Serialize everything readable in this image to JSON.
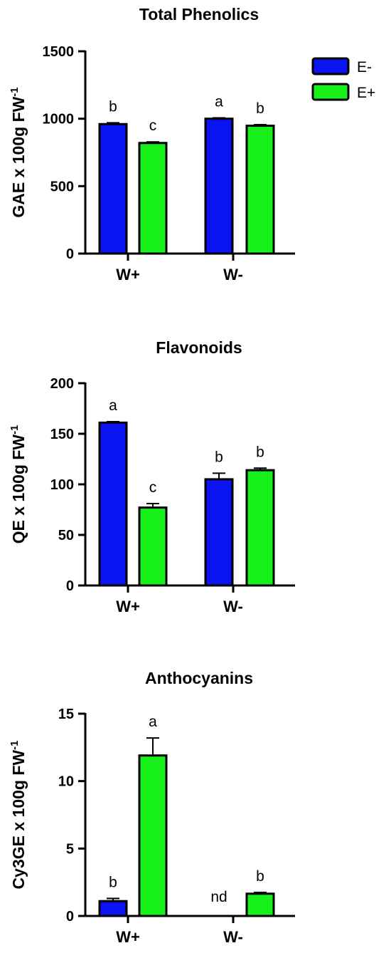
{
  "legend": {
    "position": "top-right",
    "items": [
      {
        "label": "E-",
        "color": "#0a14f0"
      },
      {
        "label": "E+",
        "color": "#17f01a"
      }
    ]
  },
  "chart_data": [
    {
      "type": "bar",
      "title": "Total Phenolics",
      "ylabel": "GAE x 100g FW",
      "ylabel_superscript": "-1",
      "ylim": [
        0,
        1500
      ],
      "yticks": [
        0,
        500,
        1000,
        1500
      ],
      "categories": [
        "W+",
        "W-"
      ],
      "series": [
        {
          "name": "E-",
          "values": [
            960,
            1000
          ],
          "errors": [
            10,
            6
          ],
          "labels": [
            "b",
            "a"
          ]
        },
        {
          "name": "E+",
          "values": [
            820,
            948
          ],
          "errors": [
            8,
            8
          ],
          "labels": [
            "c",
            "b"
          ]
        }
      ]
    },
    {
      "type": "bar",
      "title": "Flavonoids",
      "ylabel": "QE x 100g FW",
      "ylabel_superscript": "-1",
      "ylim": [
        0,
        200
      ],
      "yticks": [
        0,
        50,
        100,
        150,
        200
      ],
      "categories": [
        "W+",
        "W-"
      ],
      "series": [
        {
          "name": "E-",
          "values": [
            161,
            105
          ],
          "errors": [
            1,
            6
          ],
          "labels": [
            "a",
            "b"
          ]
        },
        {
          "name": "E+",
          "values": [
            77,
            114
          ],
          "errors": [
            4,
            2
          ],
          "labels": [
            "c",
            "b"
          ]
        }
      ]
    },
    {
      "type": "bar",
      "title": "Anthocyanins",
      "ylabel": "Cy3GE x 100g FW",
      "ylabel_superscript": "-1",
      "ylim": [
        0,
        15
      ],
      "yticks": [
        0,
        5,
        10,
        15
      ],
      "categories": [
        "W+",
        "W-"
      ],
      "series": [
        {
          "name": "E-",
          "values": [
            1.1,
            0
          ],
          "errors": [
            0.2,
            0
          ],
          "labels": [
            "b",
            "nd"
          ]
        },
        {
          "name": "E+",
          "values": [
            11.9,
            1.65
          ],
          "errors": [
            1.3,
            0.1
          ],
          "labels": [
            "a",
            "b"
          ]
        }
      ]
    }
  ]
}
